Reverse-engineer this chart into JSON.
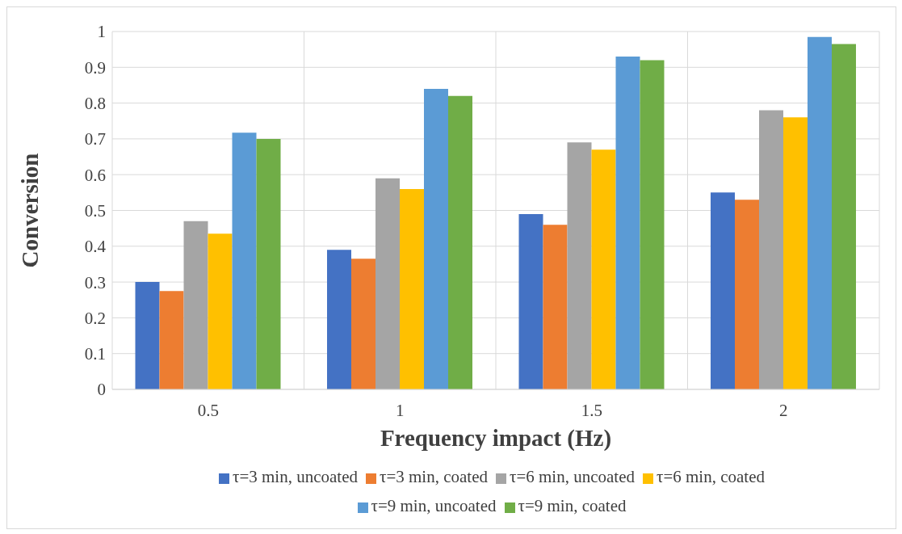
{
  "chart_data": {
    "type": "bar",
    "xlabel": "Frequency impact (Hz)",
    "ylabel": "Conversion",
    "categories": [
      "0.5",
      "1",
      "1.5",
      "2"
    ],
    "series": [
      {
        "name": "τ=3 min, uncoated",
        "color": "#4472c4",
        "values": [
          0.3,
          0.39,
          0.49,
          0.55
        ]
      },
      {
        "name": "τ=3 min, coated",
        "color": "#ed7d31",
        "values": [
          0.275,
          0.365,
          0.46,
          0.53
        ]
      },
      {
        "name": "τ=6 min, uncoated",
        "color": "#a5a5a5",
        "values": [
          0.47,
          0.59,
          0.69,
          0.78
        ]
      },
      {
        "name": "τ=6 min, coated",
        "color": "#ffc000",
        "values": [
          0.435,
          0.56,
          0.67,
          0.76
        ]
      },
      {
        "name": "τ=9 min, uncoated",
        "color": "#5b9bd5",
        "values": [
          0.717,
          0.84,
          0.93,
          0.985
        ]
      },
      {
        "name": "τ=9 min, coated",
        "color": "#70ad47",
        "values": [
          0.7,
          0.82,
          0.92,
          0.965
        ]
      }
    ],
    "ylim": [
      0,
      1
    ],
    "yticks": [
      0,
      0.1,
      0.2,
      0.3,
      0.4,
      0.5,
      0.6,
      0.7,
      0.8,
      0.9,
      1
    ],
    "grid": true,
    "legend": "bottom"
  }
}
